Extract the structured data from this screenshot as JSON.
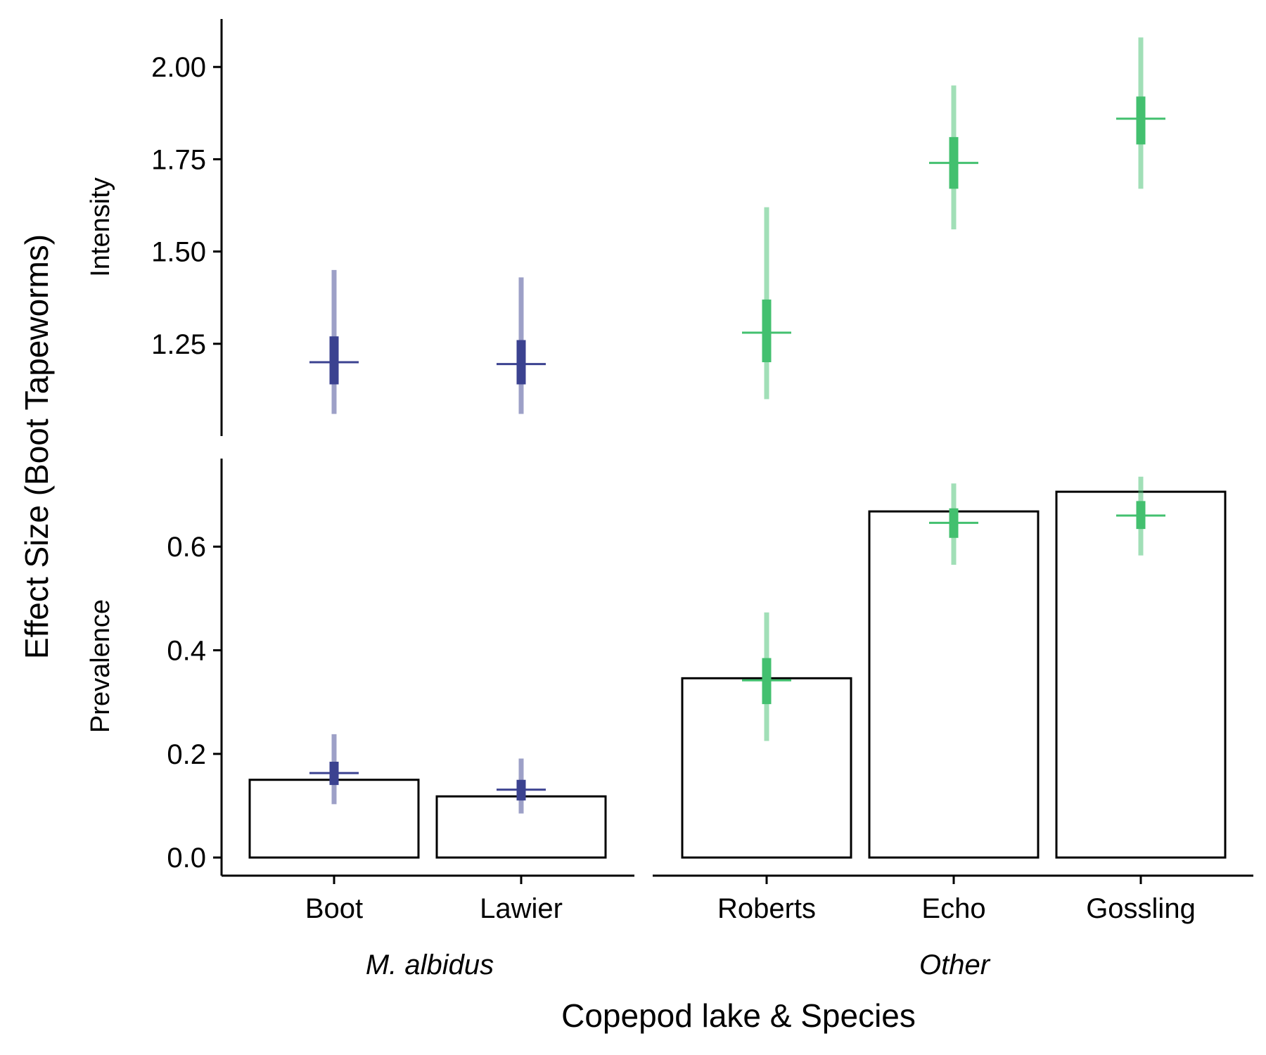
{
  "colors": {
    "M. albidus": "#3b4290",
    "Other": "#43c06f"
  },
  "chart_data": {
    "type": "bar",
    "xlabel": "Copepod lake & Species",
    "ylabel": "Effect Size (Boot Tapeworms)",
    "categories": [
      "Boot",
      "Lawier",
      "Roberts",
      "Echo",
      "Gossling"
    ],
    "groups": [
      {
        "name": "M. albidus",
        "categories": [
          "Boot",
          "Lawier"
        ]
      },
      {
        "name": "Other",
        "categories": [
          "Roberts",
          "Echo",
          "Gossling"
        ]
      }
    ],
    "panels": [
      {
        "label": "Intensity",
        "ylim": [
          1.0,
          2.13
        ],
        "yticks": [
          1.25,
          1.5,
          1.75,
          2.0
        ],
        "ytick_labels": [
          "1.25",
          "1.50",
          "1.75",
          "2.00"
        ],
        "bars": null,
        "estimates": [
          {
            "category": "Boot",
            "group": "M. albidus",
            "point": 1.2,
            "inner": [
              1.14,
              1.27
            ],
            "outer": [
              1.06,
              1.45
            ]
          },
          {
            "category": "Lawier",
            "group": "M. albidus",
            "point": 1.195,
            "inner": [
              1.14,
              1.26
            ],
            "outer": [
              1.06,
              1.43
            ]
          },
          {
            "category": "Roberts",
            "group": "Other",
            "point": 1.28,
            "inner": [
              1.2,
              1.37
            ],
            "outer": [
              1.1,
              1.62
            ]
          },
          {
            "category": "Echo",
            "group": "Other",
            "point": 1.74,
            "inner": [
              1.67,
              1.81
            ],
            "outer": [
              1.56,
              1.95
            ]
          },
          {
            "category": "Gossling",
            "group": "Other",
            "point": 1.86,
            "inner": [
              1.79,
              1.92
            ],
            "outer": [
              1.67,
              2.08
            ]
          }
        ]
      },
      {
        "label": "Prevalence",
        "ylim": [
          -0.035,
          0.77
        ],
        "yticks": [
          0.0,
          0.2,
          0.4,
          0.6
        ],
        "ytick_labels": [
          "0.0",
          "0.2",
          "0.4",
          "0.6"
        ],
        "bars": [
          0.15,
          0.118,
          0.346,
          0.668,
          0.706
        ],
        "estimates": [
          {
            "category": "Boot",
            "group": "M. albidus",
            "point": 0.163,
            "inner": [
              0.14,
              0.185
            ],
            "outer": [
              0.103,
              0.238
            ]
          },
          {
            "category": "Lawier",
            "group": "M. albidus",
            "point": 0.131,
            "inner": [
              0.11,
              0.15
            ],
            "outer": [
              0.085,
              0.191
            ]
          },
          {
            "category": "Roberts",
            "group": "Other",
            "point": 0.342,
            "inner": [
              0.296,
              0.385
            ],
            "outer": [
              0.225,
              0.473
            ]
          },
          {
            "category": "Echo",
            "group": "Other",
            "point": 0.646,
            "inner": [
              0.617,
              0.674
            ],
            "outer": [
              0.565,
              0.722
            ]
          },
          {
            "category": "Gossling",
            "group": "Other",
            "point": 0.66,
            "inner": [
              0.634,
              0.688
            ],
            "outer": [
              0.583,
              0.735
            ]
          }
        ]
      }
    ]
  }
}
